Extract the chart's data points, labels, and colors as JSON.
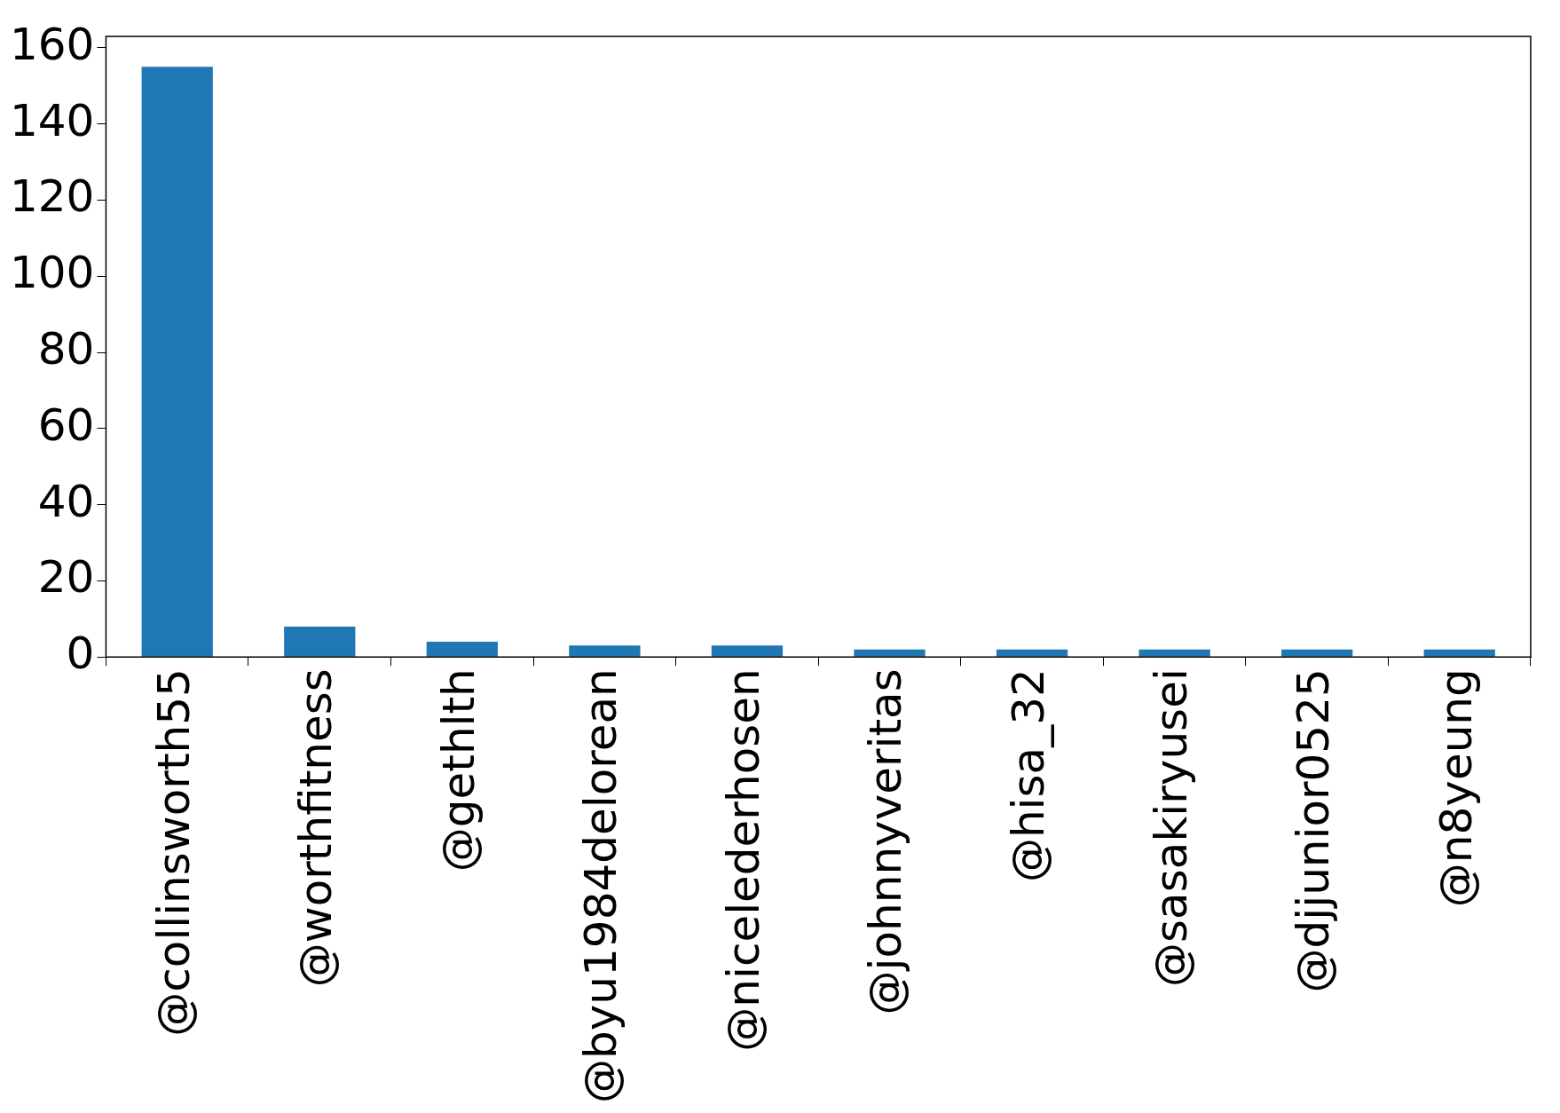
{
  "chart_data": {
    "type": "bar",
    "categories": [
      "@collinsworth55",
      "@worthfitness",
      "@gethlth",
      "@byu1984delorean",
      "@nicelederhosen",
      "@johnnyveritas",
      "@hisa_32",
      "@sasakiryusei",
      "@djjunior0525",
      "@n8yeung"
    ],
    "values": [
      155,
      8,
      4,
      3,
      3,
      2,
      2,
      2,
      2,
      2
    ],
    "color": "#1f77b4",
    "ylim": [
      0,
      163
    ],
    "yticks": [
      0,
      20,
      40,
      60,
      80,
      100,
      120,
      140,
      160
    ]
  }
}
